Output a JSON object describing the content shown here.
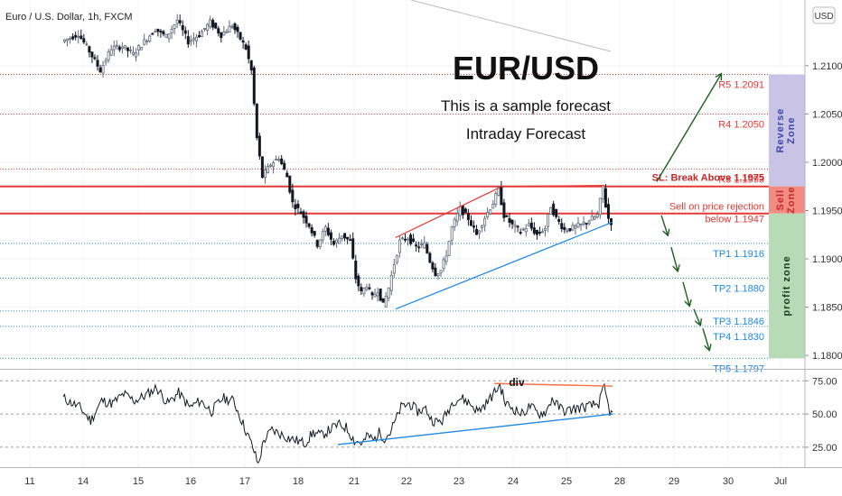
{
  "chart_data": {
    "type": "candlestick",
    "symbol_label": "Euro / U.S. Dollar, 1h, FXCM",
    "currency_badge": "USD",
    "title": "EUR/USD",
    "subtitle_1": "This is a sample forecast",
    "subtitle_2": "Intraday Forecast",
    "price_axis": {
      "ylim": [
        1.1788,
        1.2168
      ],
      "ticks": [
        "1.21000",
        "1.20500",
        "1.20000",
        "1.19500",
        "1.19000",
        "1.18500",
        "1.18000"
      ],
      "tick_values": [
        1.21,
        1.205,
        1.2,
        1.195,
        1.19,
        1.185,
        1.18
      ]
    },
    "time_axis": {
      "ticks": [
        "11",
        "14",
        "15",
        "16",
        "17",
        "18",
        "21",
        "22",
        "23",
        "24",
        "25",
        "28",
        "29",
        "30",
        "Jul"
      ]
    },
    "levels": [
      {
        "label": "R5 1.2091",
        "value": 1.2091,
        "color": "#e53935",
        "style": "dotted"
      },
      {
        "label": "R4 1.2050",
        "value": 1.205,
        "color": "#e53935",
        "style": "dotted"
      },
      {
        "label": "R3 1.1993",
        "value": 1.1993,
        "color": "#e53935",
        "style": "dotted"
      },
      {
        "label": "SL: Break Above 1.1975",
        "value": 1.1975,
        "color": "#e53935",
        "style": "solid"
      },
      {
        "label": "Sell on price rejection",
        "label_2": "below 1.1947",
        "value": 1.1947,
        "color": "#e53935",
        "style": "solid"
      },
      {
        "label": "TP1 1.1916",
        "value": 1.1916,
        "color": "#1e88e5",
        "style": "dotted"
      },
      {
        "label": "TP2 1.1880",
        "value": 1.188,
        "color": "#1e88e5",
        "style": "dotted"
      },
      {
        "label": "TP3 1.1846",
        "value": 1.1846,
        "color": "#1e88e5",
        "style": "dotted"
      },
      {
        "label": "TP4 1.1830",
        "value": 1.183,
        "color": "#1e88e5",
        "style": "dotted"
      },
      {
        "label": "TP5 1.1797",
        "value": 1.1797,
        "color": "#1e88e5",
        "style": "dotted"
      }
    ],
    "zones": [
      {
        "label": "Reverse Zone",
        "from": 1.1975,
        "to": 1.2091,
        "color": "#c9c3e6"
      },
      {
        "label": "Sell Zone",
        "from": 1.1947,
        "to": 1.1975,
        "color": "#f28b82"
      },
      {
        "label": "profit zone",
        "from": 1.1797,
        "to": 1.1947,
        "color": "#b7dcb5"
      }
    ],
    "price_path": [
      [
        0,
        1.2125
      ],
      [
        6,
        1.2133
      ],
      [
        10,
        1.2115
      ],
      [
        14,
        1.2095
      ],
      [
        18,
        1.2118
      ],
      [
        22,
        1.212
      ],
      [
        26,
        1.2112
      ],
      [
        30,
        1.2125
      ],
      [
        34,
        1.2138
      ],
      [
        38,
        1.213
      ],
      [
        42,
        1.2147
      ],
      [
        46,
        1.2125
      ],
      [
        50,
        1.2132
      ],
      [
        54,
        1.2145
      ],
      [
        58,
        1.2132
      ],
      [
        62,
        1.2142
      ],
      [
        65,
        1.2128
      ],
      [
        67,
        1.2118
      ],
      [
        69,
        1.2095
      ],
      [
        71,
        1.2025
      ],
      [
        73,
        1.1985
      ],
      [
        76,
        1.1998
      ],
      [
        79,
        1.2005
      ],
      [
        82,
        1.1985
      ],
      [
        84,
        1.1958
      ],
      [
        87,
        1.1948
      ],
      [
        90,
        1.1935
      ],
      [
        93,
        1.1915
      ],
      [
        96,
        1.1932
      ],
      [
        99,
        1.1915
      ],
      [
        102,
        1.1925
      ],
      [
        105,
        1.1918
      ],
      [
        107,
        1.188
      ],
      [
        109,
        1.1865
      ],
      [
        111,
        1.1873
      ],
      [
        113,
        1.186
      ],
      [
        115,
        1.1868
      ],
      [
        117,
        1.1852
      ],
      [
        119,
        1.187
      ],
      [
        121,
        1.1895
      ],
      [
        123,
        1.1918
      ],
      [
        126,
        1.1922
      ],
      [
        129,
        1.1912
      ],
      [
        132,
        1.1915
      ],
      [
        134,
        1.1898
      ],
      [
        136,
        1.1885
      ],
      [
        138,
        1.1888
      ],
      [
        140,
        1.1905
      ],
      [
        142,
        1.1932
      ],
      [
        145,
        1.1952
      ],
      [
        148,
        1.1942
      ],
      [
        151,
        1.1925
      ],
      [
        154,
        1.1943
      ],
      [
        157,
        1.1958
      ],
      [
        159,
        1.1972
      ],
      [
        161,
        1.1945
      ],
      [
        164,
        1.1935
      ],
      [
        167,
        1.1928
      ],
      [
        170,
        1.1935
      ],
      [
        173,
        1.1925
      ],
      [
        176,
        1.1932
      ],
      [
        178,
        1.1955
      ],
      [
        180,
        1.1942
      ],
      [
        183,
        1.193
      ],
      [
        186,
        1.1932
      ],
      [
        189,
        1.1935
      ],
      [
        192,
        1.194
      ],
      [
        195,
        1.1945
      ],
      [
        197,
        1.1975
      ],
      [
        198,
        1.1955
      ],
      [
        199,
        1.1942
      ],
      [
        200,
        1.1938
      ]
    ],
    "forecast_path": [
      [
        200,
        1.1938
      ],
      [
        210,
        1.1935
      ],
      [
        220,
        1.1915
      ],
      [
        230,
        1.188
      ],
      [
        240,
        1.1846
      ],
      [
        248,
        1.1797
      ]
    ],
    "rsi_axis": {
      "ylim": [
        10,
        82
      ],
      "ticks": [
        "75.00",
        "50.00",
        "25.00"
      ],
      "tick_values": [
        75,
        50,
        25
      ]
    },
    "rsi_path": [
      [
        0,
        62
      ],
      [
        6,
        55
      ],
      [
        10,
        45
      ],
      [
        14,
        60
      ],
      [
        18,
        58
      ],
      [
        22,
        65
      ],
      [
        26,
        60
      ],
      [
        30,
        64
      ],
      [
        34,
        70
      ],
      [
        38,
        58
      ],
      [
        42,
        66
      ],
      [
        46,
        55
      ],
      [
        50,
        60
      ],
      [
        54,
        52
      ],
      [
        58,
        62
      ],
      [
        62,
        60
      ],
      [
        65,
        45
      ],
      [
        67,
        35
      ],
      [
        69,
        25
      ],
      [
        71,
        12
      ],
      [
        73,
        30
      ],
      [
        76,
        38
      ],
      [
        79,
        35
      ],
      [
        82,
        32
      ],
      [
        85,
        30
      ],
      [
        88,
        28
      ],
      [
        91,
        36
      ],
      [
        94,
        34
      ],
      [
        97,
        38
      ],
      [
        100,
        42
      ],
      [
        103,
        40
      ],
      [
        106,
        30
      ],
      [
        109,
        28
      ],
      [
        111,
        34
      ],
      [
        113,
        30
      ],
      [
        115,
        36
      ],
      [
        117,
        32
      ],
      [
        119,
        36
      ],
      [
        121,
        45
      ],
      [
        123,
        55
      ],
      [
        126,
        58
      ],
      [
        129,
        52
      ],
      [
        132,
        54
      ],
      [
        134,
        46
      ],
      [
        136,
        44
      ],
      [
        138,
        45
      ],
      [
        140,
        52
      ],
      [
        142,
        60
      ],
      [
        145,
        62
      ],
      [
        148,
        58
      ],
      [
        151,
        52
      ],
      [
        154,
        58
      ],
      [
        157,
        66
      ],
      [
        159,
        72
      ],
      [
        161,
        58
      ],
      [
        164,
        54
      ],
      [
        167,
        50
      ],
      [
        170,
        56
      ],
      [
        173,
        50
      ],
      [
        176,
        52
      ],
      [
        178,
        62
      ],
      [
        180,
        56
      ],
      [
        183,
        52
      ],
      [
        186,
        54
      ],
      [
        189,
        55
      ],
      [
        192,
        56
      ],
      [
        195,
        58
      ],
      [
        197,
        70
      ],
      [
        198,
        60
      ],
      [
        199,
        52
      ],
      [
        200,
        49
      ]
    ],
    "rsi_annotation": "div"
  }
}
